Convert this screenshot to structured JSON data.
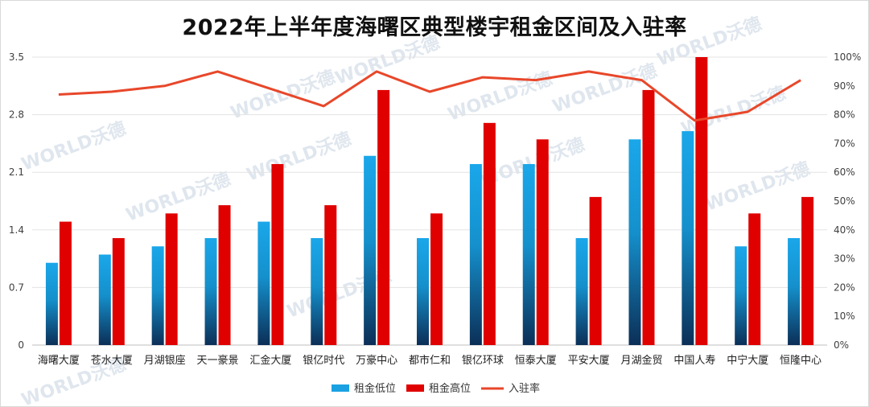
{
  "chart_data": {
    "type": "bar",
    "title": "2022年上半年度海曙区典型楼宇租金区间及入驻率",
    "watermark": "WORLD沃德",
    "categories": [
      "海曙大厦",
      "苍水大厦",
      "月湖银座",
      "天一豪景",
      "汇金大厦",
      "银亿时代",
      "万豪中心",
      "都市仁和",
      "银亿环球",
      "恒泰大厦",
      "平安大厦",
      "月湖金贸",
      "中国人寿",
      "中宁大厦",
      "恒隆中心"
    ],
    "series": [
      {
        "name": "租金低位",
        "type": "bar",
        "axis": "left",
        "color": "#1ba1e2",
        "values": [
          1.0,
          1.1,
          1.2,
          1.3,
          1.5,
          1.3,
          2.3,
          1.3,
          2.2,
          2.2,
          1.3,
          2.5,
          2.6,
          1.2,
          1.3
        ]
      },
      {
        "name": "租金高位",
        "type": "bar",
        "axis": "left",
        "color": "#e00000",
        "values": [
          1.5,
          1.3,
          1.6,
          1.7,
          2.2,
          1.7,
          3.1,
          1.6,
          2.7,
          2.5,
          1.8,
          3.1,
          3.5,
          1.6,
          1.8
        ]
      },
      {
        "name": "入驻率",
        "type": "line",
        "axis": "right",
        "color": "#e8472a",
        "values": [
          87,
          88,
          90,
          95,
          89,
          83,
          95,
          88,
          93,
          92,
          95,
          92,
          78,
          81,
          92
        ]
      }
    ],
    "y_left": {
      "min": 0,
      "max": 3.5,
      "ticks": [
        "0",
        "0.7",
        "1.4",
        "2.1",
        "2.8",
        "3.5"
      ]
    },
    "y_right": {
      "min": 0,
      "max": 100,
      "ticks": [
        "0%",
        "10%",
        "20%",
        "30%",
        "40%",
        "50%",
        "60%",
        "70%",
        "80%",
        "90%",
        "100%"
      ]
    },
    "grid": true,
    "legend": "bottom"
  }
}
